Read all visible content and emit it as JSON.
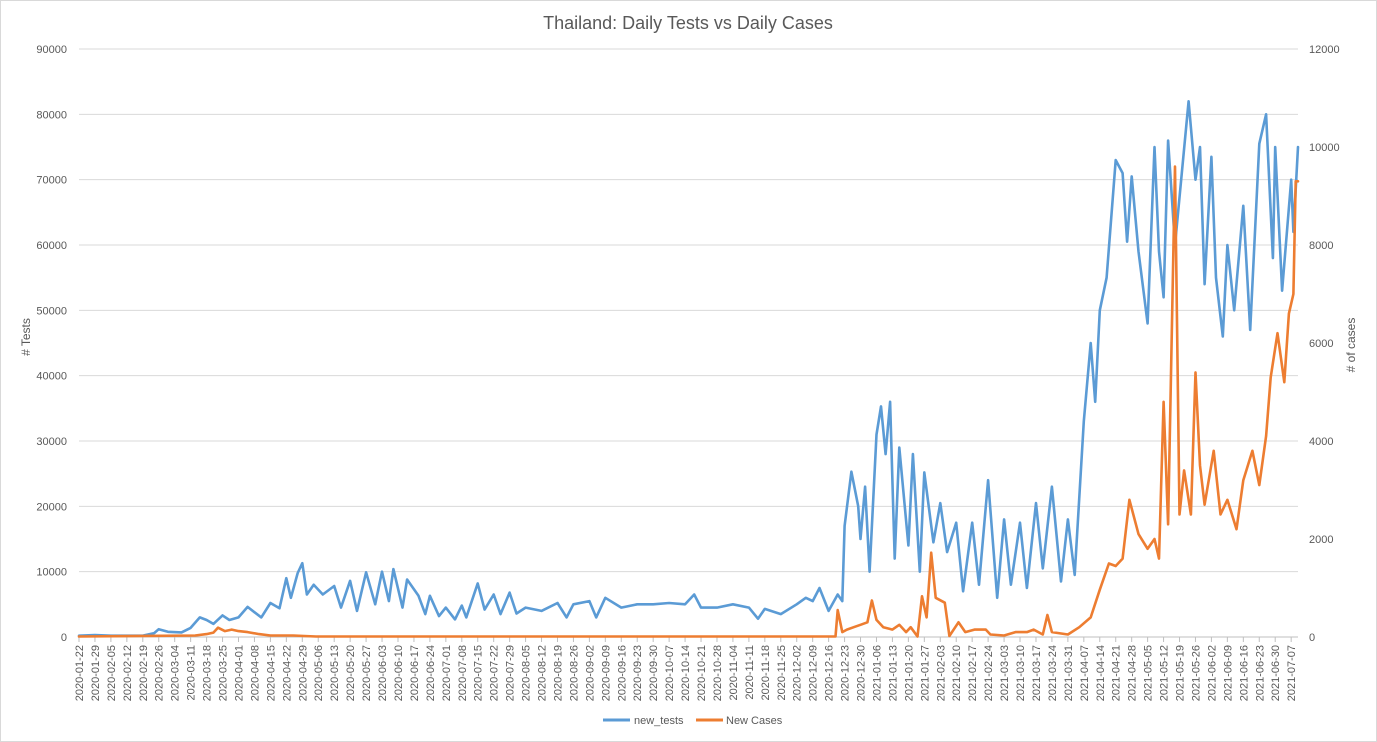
{
  "chart_data": {
    "type": "line",
    "title": "Thailand: Daily Tests vs Daily Cases",
    "ylabel": "# Tests",
    "y2label": "# of cases",
    "ylim": [
      0,
      90000
    ],
    "y2lim": [
      0,
      12000
    ],
    "yticks": [
      "0",
      "10000",
      "20000",
      "30000",
      "40000",
      "50000",
      "60000",
      "70000",
      "80000",
      "90000"
    ],
    "y2ticks": [
      "0",
      "2000",
      "4000",
      "6000",
      "8000",
      "10000",
      "12000"
    ],
    "start_date": "2020-01-22",
    "end_date": "2021-07-10",
    "xtick_labels": [
      "2020-01-22",
      "2020-01-29",
      "2020-02-05",
      "2020-02-12",
      "2020-02-19",
      "2020-02-26",
      "2020-03-04",
      "2020-03-11",
      "2020-03-18",
      "2020-03-25",
      "2020-04-01",
      "2020-04-08",
      "2020-04-15",
      "2020-04-22",
      "2020-04-29",
      "2020-05-06",
      "2020-05-13",
      "2020-05-20",
      "2020-05-27",
      "2020-06-03",
      "2020-06-10",
      "2020-06-17",
      "2020-06-24",
      "2020-07-01",
      "2020-07-08",
      "2020-07-15",
      "2020-07-22",
      "2020-07-29",
      "2020-08-05",
      "2020-08-12",
      "2020-08-19",
      "2020-08-26",
      "2020-09-02",
      "2020-09-09",
      "2020-09-16",
      "2020-09-23",
      "2020-09-30",
      "2020-10-07",
      "2020-10-14",
      "2020-10-21",
      "2020-10-28",
      "2020-11-04",
      "2020-11-11",
      "2020-11-18",
      "2020-11-25",
      "2020-12-02",
      "2020-12-09",
      "2020-12-16",
      "2020-12-23",
      "2020-12-30",
      "2021-01-06",
      "2021-01-13",
      "2021-01-20",
      "2021-01-27",
      "2021-02-03",
      "2021-02-10",
      "2021-02-17",
      "2021-02-24",
      "2021-03-03",
      "2021-03-10",
      "2021-03-17",
      "2021-03-24",
      "2021-03-31",
      "2021-04-07",
      "2021-04-14",
      "2021-04-21",
      "2021-04-28",
      "2021-05-05",
      "2021-05-12",
      "2021-05-19",
      "2021-05-26",
      "2021-06-02",
      "2021-06-09",
      "2021-06-16",
      "2021-06-23",
      "2021-06-30",
      "2021-07-07"
    ],
    "grid": true,
    "legend_position": "bottom",
    "series": [
      {
        "name": "new_tests",
        "axis": "left",
        "color": "#5b9bd5",
        "points": [
          [
            "2020-01-22",
            200
          ],
          [
            "2020-01-29",
            300
          ],
          [
            "2020-02-05",
            200
          ],
          [
            "2020-02-12",
            200
          ],
          [
            "2020-02-19",
            200
          ],
          [
            "2020-02-24",
            600
          ],
          [
            "2020-02-26",
            1200
          ],
          [
            "2020-03-01",
            800
          ],
          [
            "2020-03-07",
            700
          ],
          [
            "2020-03-11",
            1400
          ],
          [
            "2020-03-15",
            3000
          ],
          [
            "2020-03-18",
            2600
          ],
          [
            "2020-03-21",
            2000
          ],
          [
            "2020-03-25",
            3300
          ],
          [
            "2020-03-28",
            2600
          ],
          [
            "2020-04-01",
            3000
          ],
          [
            "2020-04-05",
            4600
          ],
          [
            "2020-04-08",
            3800
          ],
          [
            "2020-04-11",
            3000
          ],
          [
            "2020-04-15",
            5200
          ],
          [
            "2020-04-19",
            4400
          ],
          [
            "2020-04-22",
            9000
          ],
          [
            "2020-04-24",
            6000
          ],
          [
            "2020-04-27",
            9800
          ],
          [
            "2020-04-29",
            11300
          ],
          [
            "2020-05-01",
            6500
          ],
          [
            "2020-05-04",
            8000
          ],
          [
            "2020-05-08",
            6500
          ],
          [
            "2020-05-13",
            7800
          ],
          [
            "2020-05-16",
            4500
          ],
          [
            "2020-05-20",
            8600
          ],
          [
            "2020-05-23",
            4000
          ],
          [
            "2020-05-27",
            9900
          ],
          [
            "2020-05-31",
            5000
          ],
          [
            "2020-06-03",
            10000
          ],
          [
            "2020-06-06",
            5500
          ],
          [
            "2020-06-08",
            10400
          ],
          [
            "2020-06-12",
            4500
          ],
          [
            "2020-06-14",
            8800
          ],
          [
            "2020-06-19",
            6300
          ],
          [
            "2020-06-22",
            3500
          ],
          [
            "2020-06-24",
            6300
          ],
          [
            "2020-06-28",
            3200
          ],
          [
            "2020-07-01",
            4500
          ],
          [
            "2020-07-05",
            2700
          ],
          [
            "2020-07-08",
            4800
          ],
          [
            "2020-07-10",
            3000
          ],
          [
            "2020-07-15",
            8200
          ],
          [
            "2020-07-18",
            4200
          ],
          [
            "2020-07-22",
            6500
          ],
          [
            "2020-07-25",
            3500
          ],
          [
            "2020-07-29",
            6800
          ],
          [
            "2020-08-01",
            3600
          ],
          [
            "2020-08-05",
            4500
          ],
          [
            "2020-08-12",
            4000
          ],
          [
            "2020-08-19",
            5200
          ],
          [
            "2020-08-23",
            3000
          ],
          [
            "2020-08-26",
            5000
          ],
          [
            "2020-09-02",
            5500
          ],
          [
            "2020-09-05",
            3000
          ],
          [
            "2020-09-09",
            6000
          ],
          [
            "2020-09-16",
            4500
          ],
          [
            "2020-09-23",
            5000
          ],
          [
            "2020-09-30",
            5000
          ],
          [
            "2020-10-07",
            5200
          ],
          [
            "2020-10-14",
            5000
          ],
          [
            "2020-10-18",
            6500
          ],
          [
            "2020-10-21",
            4500
          ],
          [
            "2020-10-28",
            4500
          ],
          [
            "2020-11-04",
            5000
          ],
          [
            "2020-11-11",
            4500
          ],
          [
            "2020-11-15",
            2800
          ],
          [
            "2020-11-18",
            4300
          ],
          [
            "2020-11-25",
            3500
          ],
          [
            "2020-12-02",
            5000
          ],
          [
            "2020-12-06",
            6000
          ],
          [
            "2020-12-09",
            5500
          ],
          [
            "2020-12-12",
            7500
          ],
          [
            "2020-12-16",
            4000
          ],
          [
            "2020-12-20",
            6500
          ],
          [
            "2020-12-22",
            5500
          ],
          [
            "2020-12-23",
            17000
          ],
          [
            "2020-12-26",
            25300
          ],
          [
            "2020-12-29",
            20000
          ],
          [
            "2020-12-30",
            15000
          ],
          [
            "2021-01-01",
            23000
          ],
          [
            "2021-01-03",
            10000
          ],
          [
            "2021-01-06",
            31000
          ],
          [
            "2021-01-08",
            35300
          ],
          [
            "2021-01-10",
            28000
          ],
          [
            "2021-01-12",
            36000
          ],
          [
            "2021-01-14",
            12000
          ],
          [
            "2021-01-16",
            29000
          ],
          [
            "2021-01-20",
            14000
          ],
          [
            "2021-01-22",
            28000
          ],
          [
            "2021-01-25",
            10000
          ],
          [
            "2021-01-27",
            25200
          ],
          [
            "2021-01-31",
            14500
          ],
          [
            "2021-02-03",
            20500
          ],
          [
            "2021-02-06",
            13000
          ],
          [
            "2021-02-10",
            17500
          ],
          [
            "2021-02-13",
            7000
          ],
          [
            "2021-02-17",
            17500
          ],
          [
            "2021-02-20",
            8000
          ],
          [
            "2021-02-24",
            24000
          ],
          [
            "2021-02-28",
            6000
          ],
          [
            "2021-03-03",
            18000
          ],
          [
            "2021-03-06",
            8000
          ],
          [
            "2021-03-10",
            17500
          ],
          [
            "2021-03-13",
            7500
          ],
          [
            "2021-03-17",
            20500
          ],
          [
            "2021-03-20",
            10500
          ],
          [
            "2021-03-24",
            23000
          ],
          [
            "2021-03-28",
            8500
          ],
          [
            "2021-03-31",
            18000
          ],
          [
            "2021-04-03",
            9500
          ],
          [
            "2021-04-07",
            33000
          ],
          [
            "2021-04-10",
            45000
          ],
          [
            "2021-04-12",
            36000
          ],
          [
            "2021-04-14",
            50000
          ],
          [
            "2021-04-17",
            55000
          ],
          [
            "2021-04-21",
            73000
          ],
          [
            "2021-04-24",
            71000
          ],
          [
            "2021-04-26",
            60500
          ],
          [
            "2021-04-28",
            70500
          ],
          [
            "2021-05-01",
            59000
          ],
          [
            "2021-05-05",
            48000
          ],
          [
            "2021-05-08",
            75000
          ],
          [
            "2021-05-10",
            59000
          ],
          [
            "2021-05-12",
            52000
          ],
          [
            "2021-05-14",
            76000
          ],
          [
            "2021-05-17",
            60000
          ],
          [
            "2021-05-20",
            71000
          ],
          [
            "2021-05-23",
            82000
          ],
          [
            "2021-05-26",
            70000
          ],
          [
            "2021-05-28",
            75000
          ],
          [
            "2021-05-30",
            54000
          ],
          [
            "2021-06-02",
            73500
          ],
          [
            "2021-06-04",
            55000
          ],
          [
            "2021-06-07",
            46000
          ],
          [
            "2021-06-09",
            60000
          ],
          [
            "2021-06-12",
            50000
          ],
          [
            "2021-06-16",
            66000
          ],
          [
            "2021-06-19",
            47000
          ],
          [
            "2021-06-23",
            75500
          ],
          [
            "2021-06-26",
            80000
          ],
          [
            "2021-06-29",
            58000
          ],
          [
            "2021-06-30",
            75000
          ],
          [
            "2021-07-03",
            53000
          ],
          [
            "2021-07-07",
            70000
          ],
          [
            "2021-07-08",
            62000
          ],
          [
            "2021-07-10",
            75000
          ]
        ]
      },
      {
        "name": "New Cases",
        "axis": "right",
        "color": "#ed7d31",
        "points": [
          [
            "2020-01-22",
            10
          ],
          [
            "2020-03-13",
            30
          ],
          [
            "2020-03-18",
            60
          ],
          [
            "2020-03-21",
            90
          ],
          [
            "2020-03-23",
            190
          ],
          [
            "2020-03-26",
            120
          ],
          [
            "2020-03-29",
            150
          ],
          [
            "2020-04-01",
            120
          ],
          [
            "2020-04-05",
            100
          ],
          [
            "2020-04-10",
            60
          ],
          [
            "2020-04-15",
            30
          ],
          [
            "2020-04-25",
            30
          ],
          [
            "2020-05-05",
            10
          ],
          [
            "2020-12-15",
            10
          ],
          [
            "2020-12-19",
            10
          ],
          [
            "2020-12-20",
            548
          ],
          [
            "2020-12-22",
            100
          ],
          [
            "2020-12-24",
            150
          ],
          [
            "2020-12-27",
            200
          ],
          [
            "2020-12-30",
            250
          ],
          [
            "2021-01-02",
            300
          ],
          [
            "2021-01-04",
            745
          ],
          [
            "2021-01-06",
            350
          ],
          [
            "2021-01-09",
            200
          ],
          [
            "2021-01-13",
            150
          ],
          [
            "2021-01-16",
            250
          ],
          [
            "2021-01-19",
            100
          ],
          [
            "2021-01-21",
            200
          ],
          [
            "2021-01-24",
            10
          ],
          [
            "2021-01-26",
            830
          ],
          [
            "2021-01-28",
            400
          ],
          [
            "2021-01-30",
            1720
          ],
          [
            "2021-02-01",
            800
          ],
          [
            "2021-02-05",
            700
          ],
          [
            "2021-02-07",
            20
          ],
          [
            "2021-02-11",
            300
          ],
          [
            "2021-02-14",
            100
          ],
          [
            "2021-02-18",
            150
          ],
          [
            "2021-02-23",
            150
          ],
          [
            "2021-02-25",
            50
          ],
          [
            "2021-03-03",
            30
          ],
          [
            "2021-03-08",
            100
          ],
          [
            "2021-03-13",
            100
          ],
          [
            "2021-03-16",
            150
          ],
          [
            "2021-03-20",
            50
          ],
          [
            "2021-03-22",
            450
          ],
          [
            "2021-03-24",
            100
          ],
          [
            "2021-03-31",
            50
          ],
          [
            "2021-04-05",
            200
          ],
          [
            "2021-04-10",
            400
          ],
          [
            "2021-04-14",
            965
          ],
          [
            "2021-04-18",
            1500
          ],
          [
            "2021-04-21",
            1450
          ],
          [
            "2021-04-24",
            1600
          ],
          [
            "2021-04-27",
            2800
          ],
          [
            "2021-05-01",
            2100
          ],
          [
            "2021-05-05",
            1800
          ],
          [
            "2021-05-08",
            2000
          ],
          [
            "2021-05-10",
            1600
          ],
          [
            "2021-05-12",
            4800
          ],
          [
            "2021-05-14",
            2300
          ],
          [
            "2021-05-17",
            9600
          ],
          [
            "2021-05-19",
            2500
          ],
          [
            "2021-05-21",
            3400
          ],
          [
            "2021-05-24",
            2500
          ],
          [
            "2021-05-26",
            5400
          ],
          [
            "2021-05-28",
            3500
          ],
          [
            "2021-05-30",
            2700
          ],
          [
            "2021-06-03",
            3800
          ],
          [
            "2021-06-06",
            2500
          ],
          [
            "2021-06-09",
            2800
          ],
          [
            "2021-06-13",
            2200
          ],
          [
            "2021-06-16",
            3200
          ],
          [
            "2021-06-20",
            3800
          ],
          [
            "2021-06-23",
            3100
          ],
          [
            "2021-06-26",
            4100
          ],
          [
            "2021-06-28",
            5300
          ],
          [
            "2021-07-01",
            6200
          ],
          [
            "2021-07-04",
            5200
          ],
          [
            "2021-07-06",
            6600
          ],
          [
            "2021-07-08",
            7000
          ],
          [
            "2021-07-09",
            9300
          ],
          [
            "2021-07-10",
            9300
          ]
        ]
      }
    ]
  }
}
